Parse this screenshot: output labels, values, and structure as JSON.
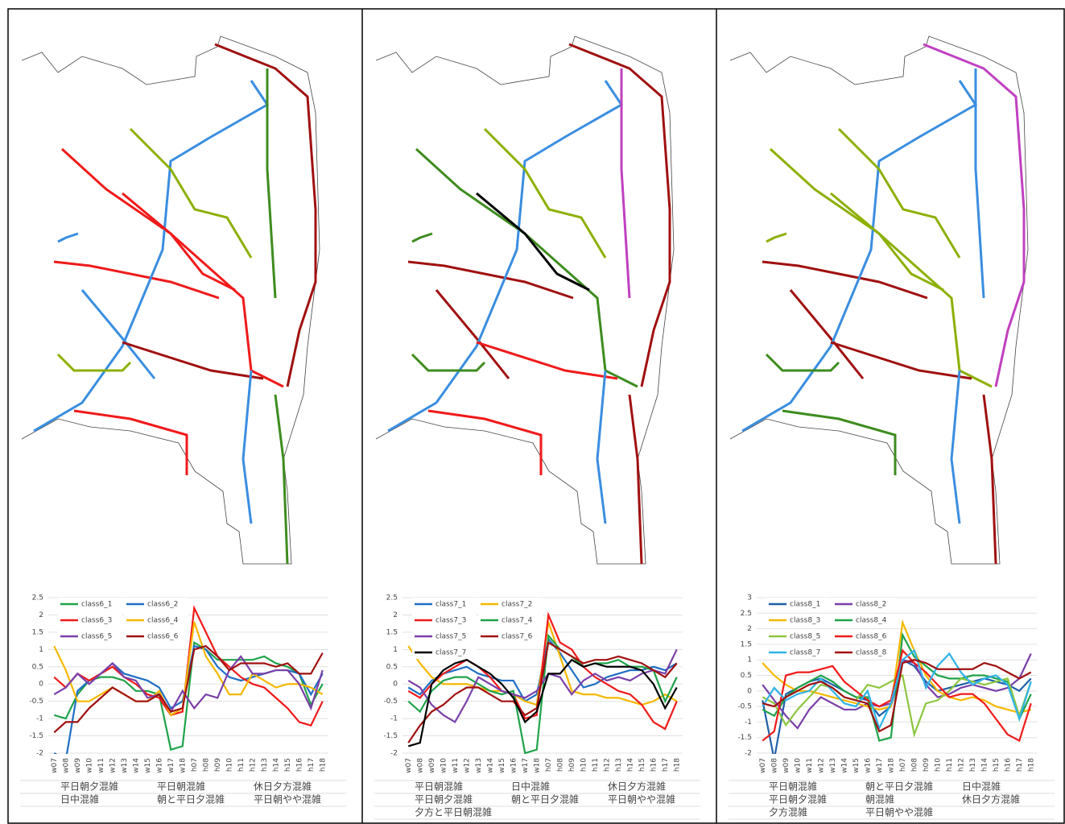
{
  "chart_data": [
    {
      "type": "line",
      "legend": "top-left",
      "grid": true,
      "categories": [
        "w07",
        "w08",
        "w09",
        "w10",
        "w11",
        "w12",
        "w13",
        "w14",
        "w15",
        "w16",
        "w17",
        "w18",
        "h07",
        "h08",
        "h09",
        "h10",
        "h11",
        "h12",
        "h13",
        "h14",
        "h15",
        "h16",
        "h17",
        "h18"
      ],
      "ylim": [
        -2,
        2.5
      ],
      "yticks": [
        -2,
        -1.5,
        -1,
        -0.5,
        0,
        0.5,
        1,
        1.5,
        2,
        2.5
      ],
      "series": [
        {
          "name": "class6_1",
          "color": "#1fa34a",
          "values": [
            -0.9,
            -1.0,
            -0.3,
            0.1,
            0.2,
            0.2,
            0.1,
            -0.2,
            -0.2,
            -0.3,
            -1.9,
            -1.8,
            1.2,
            1.0,
            0.7,
            0.7,
            0.7,
            0.7,
            0.8,
            0.6,
            0.5,
            0.3,
            -0.6,
            0
          ]
        },
        {
          "name": "class6_2",
          "color": "#1f6fc4",
          "values": [
            -2.0,
            -2.2,
            -0.2,
            0.1,
            0.3,
            0.6,
            0.3,
            0.2,
            0.1,
            -0.1,
            -0.7,
            -0.5,
            1.1,
            1.0,
            0.5,
            0.2,
            0.1,
            0.2,
            0.3,
            0.4,
            0.4,
            0.3,
            -0.3,
            0.3
          ]
        },
        {
          "name": "class6_3",
          "color": "#f01a1a",
          "values": [
            0.2,
            -0.1,
            0.3,
            0.1,
            0.3,
            0.5,
            0.2,
            0,
            -0.3,
            -0.4,
            -0.9,
            -0.8,
            2.2,
            1.5,
            0.8,
            0.5,
            0.2,
            0,
            -0.1,
            -0.4,
            -0.7,
            -1.1,
            -1.2,
            -0.5
          ]
        },
        {
          "name": "class6_4",
          "color": "#f5b800",
          "values": [
            1.1,
            0.4,
            -0.5,
            -0.5,
            -0.3,
            -0.1,
            -0.3,
            -0.5,
            -0.5,
            -0.2,
            -0.9,
            -0.7,
            1.8,
            0.8,
            0.3,
            -0.3,
            -0.3,
            0.3,
            0.1,
            -0.1,
            0,
            0,
            -0.1,
            -0.3
          ]
        },
        {
          "name": "class6_5",
          "color": "#7a3fa8",
          "values": [
            -0.3,
            -0.1,
            0.3,
            0,
            0.3,
            0.6,
            0.2,
            0.1,
            -0.4,
            -0.3,
            -0.8,
            -0.2,
            -0.7,
            -0.3,
            -0.4,
            0.4,
            0.8,
            0.3,
            0.3,
            0.4,
            0.4,
            0,
            -0.7,
            0.4
          ]
        },
        {
          "name": "class6_6",
          "color": "#a01010",
          "values": [
            -1.4,
            -1.1,
            -1.1,
            -0.7,
            -0.4,
            -0.1,
            -0.3,
            -0.5,
            -0.5,
            -0.3,
            -0.8,
            -0.7,
            1.0,
            1.1,
            0.8,
            0.4,
            0.6,
            0.6,
            0.6,
            0.5,
            0.6,
            0.3,
            0.3,
            0.9
          ]
        }
      ],
      "annotations": [
        {
          "text": "平日朝夕混雑",
          "color": "#1fa34a"
        },
        {
          "text": "平日朝混雑",
          "color": "#1f6fc4"
        },
        {
          "text": "休日夕方混雑",
          "color": "#f01a1a"
        },
        {
          "text": "日中混雑",
          "color": "#f5b800"
        },
        {
          "text": "朝と平日夕混雑",
          "color": "#7a3fa8"
        },
        {
          "text": "平日朝やや混雑",
          "color": "#c00000"
        }
      ]
    },
    {
      "type": "line",
      "legend": "top-left",
      "grid": true,
      "categories": [
        "w07",
        "w08",
        "w09",
        "w10",
        "w11",
        "w12",
        "w13",
        "w14",
        "w15",
        "w16",
        "w17",
        "w18",
        "h07",
        "h08",
        "h09",
        "h10",
        "h11",
        "h12",
        "h13",
        "h14",
        "h15",
        "h16",
        "h17",
        "h18"
      ],
      "ylim": [
        -2,
        2.5
      ],
      "yticks": [
        -2,
        -1.5,
        -1,
        -0.5,
        0,
        0.5,
        1,
        1.5,
        2,
        2.5
      ],
      "series": [
        {
          "name": "class7_1",
          "color": "#1f6fc4",
          "values": [
            -0.1,
            -0.3,
            0.1,
            0.3,
            0.4,
            0.5,
            0.3,
            0.2,
            0.1,
            0.1,
            -0.5,
            -0.3,
            1.3,
            0.9,
            0.4,
            -0.1,
            0,
            0.2,
            0.3,
            0.4,
            0.4,
            0.5,
            0.4,
            0.6
          ]
        },
        {
          "name": "class7_2",
          "color": "#f5b800",
          "values": [
            1.1,
            0.6,
            0.2,
            0,
            0,
            0,
            -0.1,
            -0.2,
            -0.2,
            -0.3,
            -0.5,
            -0.6,
            1.8,
            0.8,
            -0.2,
            -0.3,
            -0.3,
            -0.4,
            -0.4,
            -0.5,
            -0.6,
            -0.5,
            -0.3,
            -0.5
          ]
        },
        {
          "name": "class7_3",
          "color": "#f01a1a",
          "values": [
            -0.2,
            -0.4,
            0,
            0.3,
            0.5,
            0.7,
            0.5,
            0.2,
            -0.2,
            -0.3,
            -1.0,
            -0.9,
            2.0,
            1.2,
            1.0,
            0.5,
            0.2,
            0,
            -0.2,
            -0.3,
            -0.6,
            -1.1,
            -1.3,
            -0.5
          ]
        },
        {
          "name": "class7_4",
          "color": "#1fa34a",
          "values": [
            -0.5,
            -0.8,
            -0.2,
            0.1,
            0.2,
            0.2,
            0,
            -0.2,
            -0.3,
            -0.2,
            -2.0,
            -1.9,
            1.4,
            1.0,
            0.8,
            0.5,
            0.6,
            0.6,
            0.7,
            0.5,
            0.5,
            0.4,
            -0.5,
            0.2
          ]
        },
        {
          "name": "class7_5",
          "color": "#7a3fa8",
          "values": [
            0.1,
            -0.1,
            -0.6,
            -0.9,
            -1.1,
            -0.5,
            0.2,
            0,
            -0.2,
            -0.3,
            -0.4,
            -0.2,
            0.3,
            0.2,
            -0.3,
            0.1,
            0.3,
            0.1,
            0.2,
            0.1,
            0.3,
            0.4,
            0.3,
            1.0
          ]
        },
        {
          "name": "class7_6",
          "color": "#a01010",
          "values": [
            -1.7,
            -1.2,
            -0.8,
            -0.6,
            -0.3,
            -0.1,
            -0.1,
            -0.3,
            -0.5,
            -0.5,
            -0.9,
            -0.7,
            1.2,
            1.0,
            0.8,
            0.6,
            0.7,
            0.7,
            0.8,
            0.7,
            0.6,
            0.4,
            0.2,
            0.6
          ]
        },
        {
          "name": "class7_7",
          "color": "#000000",
          "values": [
            -1.8,
            -1.7,
            0,
            0.4,
            0.6,
            0.7,
            0.5,
            0.3,
            0,
            -0.4,
            -1.1,
            -0.8,
            0.3,
            0.3,
            0.7,
            0.5,
            0.6,
            0.5,
            0.5,
            0.5,
            0.4,
            0,
            -0.7,
            -0.1
          ]
        }
      ],
      "annotations": [
        {
          "text": "平日朝混雑",
          "color": "#1f6fc4"
        },
        {
          "text": "日中混雑",
          "color": "#f5b800"
        },
        {
          "text": "休日夕方混雑",
          "color": "#f01a1a"
        },
        {
          "text": "平日朝夕混雑",
          "color": "#1fa34a"
        },
        {
          "text": "朝と平日夕混雑",
          "color": "#7a3fa8"
        },
        {
          "text": "平日朝やや混雑",
          "color": "#c00000"
        },
        {
          "text": "夕方と平日朝混雑",
          "color": "#000000"
        }
      ]
    },
    {
      "type": "line",
      "legend": "top-left",
      "grid": true,
      "categories": [
        "w07",
        "w08",
        "w09",
        "w10",
        "w11",
        "w12",
        "w13",
        "w14",
        "w15",
        "w16",
        "w17",
        "w18",
        "h07",
        "h08",
        "h09",
        "h10",
        "h11",
        "h12",
        "h13",
        "h14",
        "h15",
        "h16",
        "h17",
        "h18"
      ],
      "ylim": [
        -2,
        3
      ],
      "yticks": [
        -2,
        -1.5,
        -1,
        -0.5,
        0,
        0.5,
        1,
        1.5,
        2,
        2.5,
        3
      ],
      "series": [
        {
          "name": "class8_1",
          "color": "#1f5fa8",
          "values": [
            -0.3,
            -2.2,
            -0.1,
            0.1,
            0.3,
            0.4,
            0.2,
            0,
            -0.2,
            -0.3,
            -0.8,
            -0.5,
            1.0,
            0.8,
            0.3,
            0,
            0.1,
            0.2,
            0.3,
            0.4,
            0.3,
            0.2,
            0,
            0.4
          ]
        },
        {
          "name": "class8_2",
          "color": "#7a3fa8",
          "values": [
            0.2,
            -0.3,
            -0.8,
            -1.2,
            -0.6,
            -0.2,
            -0.4,
            -0.6,
            -0.6,
            -0.4,
            -0.5,
            -0.4,
            1.0,
            0.9,
            0.2,
            -0.2,
            -0.1,
            0.1,
            0.2,
            0.1,
            0,
            0.1,
            0.4,
            1.2
          ]
        },
        {
          "name": "class8_3",
          "color": "#f5b800",
          "values": [
            0.9,
            0.5,
            0.2,
            0,
            0,
            -0.1,
            -0.2,
            -0.3,
            -0.4,
            -0.5,
            -0.6,
            -0.5,
            2.2,
            1.3,
            0.5,
            0,
            -0.2,
            -0.3,
            -0.2,
            -0.3,
            -0.5,
            -0.6,
            -0.7,
            -0.6
          ]
        },
        {
          "name": "class8_4",
          "color": "#1fa34a",
          "values": [
            -0.6,
            -0.8,
            -0.2,
            0.1,
            0.3,
            0.5,
            0.3,
            0,
            -0.2,
            -0.2,
            -1.6,
            -1.5,
            1.8,
            1.1,
            0.8,
            0.5,
            0.4,
            0.4,
            0.5,
            0.5,
            0.4,
            0.3,
            -0.9,
            -0.1
          ]
        },
        {
          "name": "class8_5",
          "color": "#8cc63f",
          "values": [
            -0.2,
            -0.4,
            -1.1,
            -0.6,
            -0.2,
            0.2,
            0.1,
            -0.2,
            -0.3,
            0.2,
            0.1,
            0.3,
            0.5,
            -1.4,
            -0.4,
            -0.3,
            0,
            0.4,
            0.3,
            0.2,
            0.3,
            0.4,
            -0.8,
            0.3
          ]
        },
        {
          "name": "class8_6",
          "color": "#f01a1a",
          "values": [
            -1.6,
            -1.3,
            0.5,
            0.6,
            0.6,
            0.7,
            0.8,
            0.3,
            0,
            -0.3,
            -0.5,
            -0.3,
            1.3,
            0.9,
            0.6,
            0.2,
            -0.2,
            -0.1,
            -0.1,
            -0.4,
            -0.9,
            -1.4,
            -1.6,
            -0.4
          ]
        },
        {
          "name": "class8_7",
          "color": "#2fb3e8",
          "values": [
            -0.5,
            0.1,
            -0.3,
            -0.1,
            0,
            0.4,
            0,
            -0.4,
            -0.5,
            0,
            -1.2,
            -0.4,
            1.0,
            1.3,
            0.1,
            0.8,
            1.2,
            0.6,
            0.2,
            0.4,
            0.5,
            0.2,
            -0.9,
            0.3
          ]
        },
        {
          "name": "class8_8",
          "color": "#a01010",
          "values": [
            -0.4,
            -0.5,
            -0.2,
            0,
            0.2,
            0.3,
            0.1,
            -0.2,
            -0.3,
            -0.4,
            -1.3,
            -1.1,
            0.9,
            1.0,
            0.9,
            0.7,
            0.7,
            0.7,
            0.7,
            0.9,
            0.8,
            0.6,
            0.4,
            0.6
          ]
        }
      ],
      "annotations": [
        {
          "text": "平日朝混雑",
          "color": "#1f6fc4"
        },
        {
          "text": "朝と平日夕混雑",
          "color": "#7a3fa8"
        },
        {
          "text": "日中混雑",
          "color": "#f5b800"
        },
        {
          "text": "平日朝夕混雑",
          "color": "#1fa34a"
        },
        {
          "text": "朝混雑",
          "color": "#8cc63f"
        },
        {
          "text": "休日夕方混雑",
          "color": "#f01a1a"
        },
        {
          "text": "夕方混雑",
          "color": "#2fb3e8"
        },
        {
          "text": "平日朝やや混雑",
          "color": "#c00000"
        }
      ]
    }
  ]
}
